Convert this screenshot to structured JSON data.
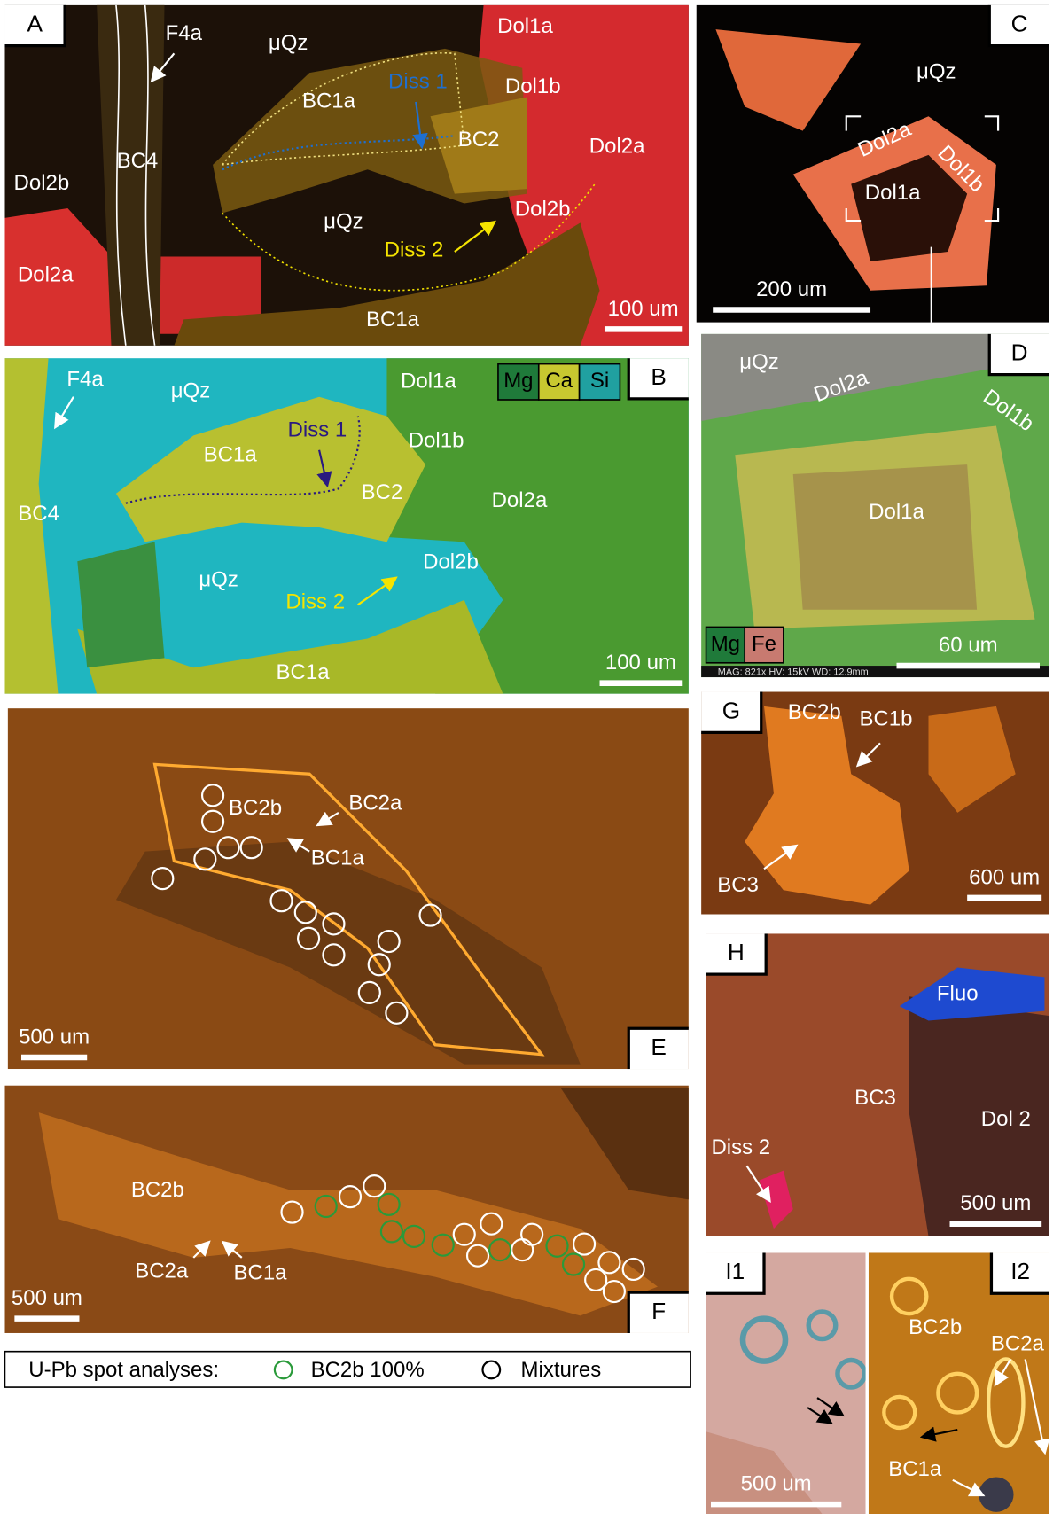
{
  "panels": [
    {
      "letter": "A",
      "labels": [
        "F4a",
        "μQz",
        "Dol1a",
        "Dol1b",
        "Diss 1",
        "BC1a",
        "BC2",
        "Dol2a",
        "BC4",
        "Dol2b",
        "μQz",
        "Dol2b",
        "Diss 2",
        "Dol2a",
        "BC1a"
      ],
      "scale_bar": "100 um"
    },
    {
      "letter": "C",
      "labels": [
        "μQz",
        "Dol2a",
        "Dol1b",
        "Dol1a"
      ],
      "scale_bar": "200 um"
    },
    {
      "letter": "B",
      "labels": [
        "F4a",
        "μQz",
        "Dol1a",
        "Dol1b",
        "Diss 1",
        "BC1a",
        "BC2",
        "Dol2a",
        "BC4",
        "μQz",
        "Dol2b",
        "Diss 2",
        "BC1a"
      ],
      "scale_bar": "100 um",
      "element_legend": [
        "Mg",
        "Ca",
        "Si"
      ]
    },
    {
      "letter": "D",
      "labels": [
        "μQz",
        "Dol2a",
        "Dol1b",
        "Dol1a"
      ],
      "scale_bar": "60 um",
      "element_legend": [
        "Mg",
        "Fe"
      ],
      "instrument_text": "MAG: 821x  HV: 15kV  WD: 12.9mm"
    },
    {
      "letter": "E",
      "labels": [
        "BC2b",
        "BC2a",
        "BC1a"
      ],
      "scale_bar": "500 um"
    },
    {
      "letter": "G",
      "labels": [
        "BC2b",
        "BC1b",
        "BC3"
      ],
      "scale_bar": "600 um"
    },
    {
      "letter": "F",
      "labels": [
        "BC2b",
        "BC2a",
        "BC1a"
      ],
      "scale_bar": "500 um"
    },
    {
      "letter": "H",
      "labels": [
        "Fluo",
        "BC3",
        "Dol 2",
        "Diss 2"
      ],
      "scale_bar": "500 um"
    },
    {
      "letter": "I1",
      "labels": [],
      "scale_bar": "500 um"
    },
    {
      "letter": "I2",
      "labels": [
        "BC2b",
        "BC2a",
        "BC1a"
      ],
      "scale_bar": null
    }
  ],
  "legend": {
    "title": "U-Pb spot analyses:",
    "items": [
      "BC2b 100%",
      "Mixtures"
    ]
  }
}
